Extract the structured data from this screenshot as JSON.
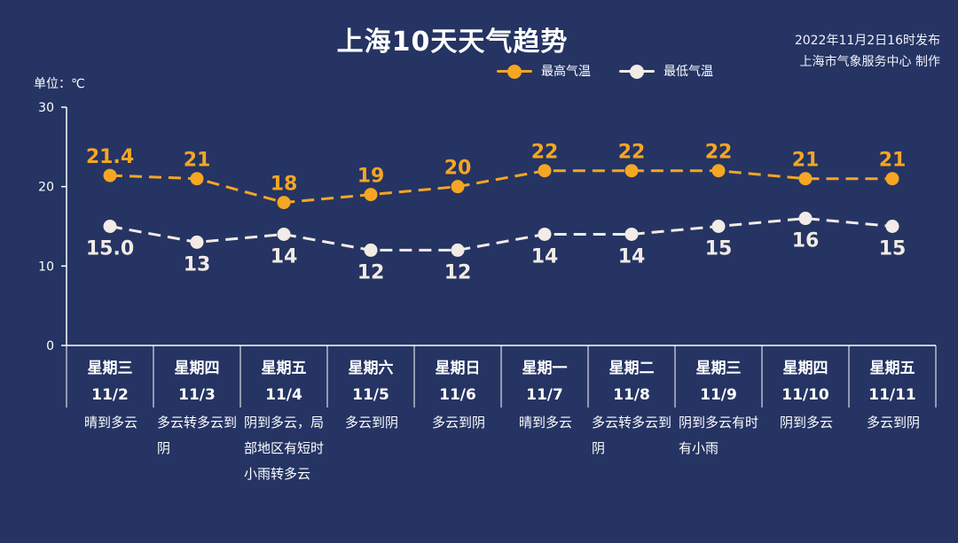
{
  "title": "上海10天天气趋势",
  "publish": {
    "time": "2022年11月2日16时发布",
    "source": "上海市气象服务中心 制作"
  },
  "unit_label": "单位：℃",
  "legend": {
    "high": "最高气温",
    "low": "最低气温"
  },
  "colors": {
    "background": "#253463",
    "high": "#f5a623",
    "low": "#f2ebe6",
    "axis": "#ffffff"
  },
  "days": [
    {
      "weekday": "星期三",
      "date": "11/2",
      "weather": "晴到多云"
    },
    {
      "weekday": "星期四",
      "date": "11/3",
      "weather": "多云转多云到阴"
    },
    {
      "weekday": "星期五",
      "date": "11/4",
      "weather": "阴到多云，局部地区有短时小雨转多云"
    },
    {
      "weekday": "星期六",
      "date": "11/5",
      "weather": "多云到阴"
    },
    {
      "weekday": "星期日",
      "date": "11/6",
      "weather": "多云到阴"
    },
    {
      "weekday": "星期一",
      "date": "11/7",
      "weather": "晴到多云"
    },
    {
      "weekday": "星期二",
      "date": "11/8",
      "weather": "多云转多云到阴"
    },
    {
      "weekday": "星期三",
      "date": "11/9",
      "weather": "阴到多云有时有小雨"
    },
    {
      "weekday": "星期四",
      "date": "11/10",
      "weather": "阴到多云"
    },
    {
      "weekday": "星期五",
      "date": "11/11",
      "weather": "多云到阴"
    }
  ],
  "chart_data": {
    "type": "line",
    "title": "上海10天天气趋势",
    "ylabel": "单位：℃",
    "ylim": [
      0,
      30
    ],
    "yticks": [
      0,
      10,
      20,
      30
    ],
    "categories": [
      "11/2",
      "11/3",
      "11/4",
      "11/5",
      "11/6",
      "11/7",
      "11/8",
      "11/9",
      "11/10",
      "11/11"
    ],
    "series": [
      {
        "name": "最高气温",
        "values": [
          21.4,
          21,
          18,
          19,
          20,
          22,
          22,
          22,
          21,
          21
        ],
        "labels": [
          "21.4",
          "21",
          "18",
          "19",
          "20",
          "22",
          "22",
          "22",
          "21",
          "21"
        ]
      },
      {
        "name": "最低气温",
        "values": [
          15.0,
          13,
          14,
          12,
          12,
          14,
          14,
          15,
          16,
          15
        ],
        "labels": [
          "15.0",
          "13",
          "14",
          "12",
          "12",
          "14",
          "14",
          "15",
          "16",
          "15"
        ]
      }
    ],
    "grid": false,
    "legend_position": "top"
  }
}
